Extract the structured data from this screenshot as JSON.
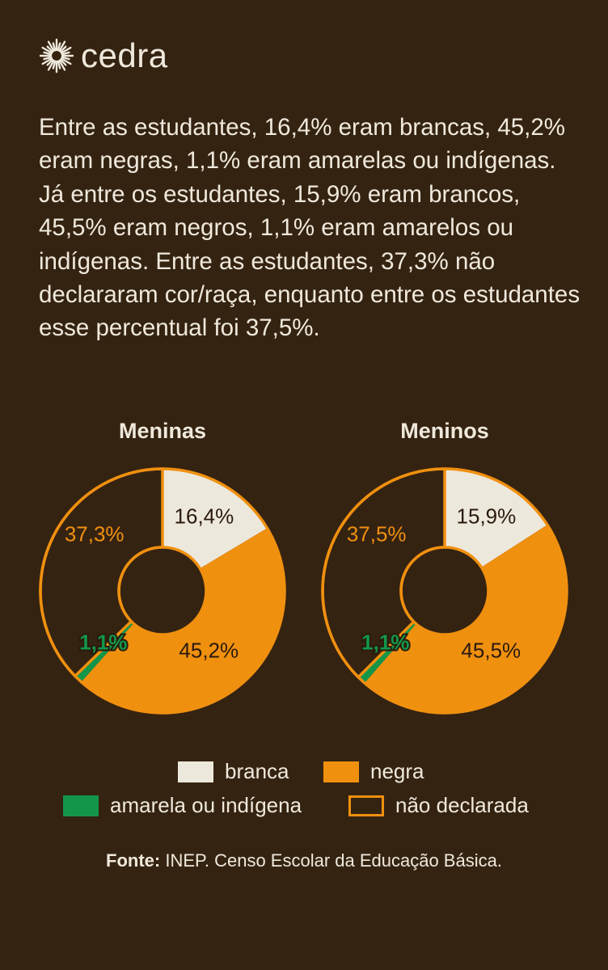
{
  "brand": {
    "name": "cedra",
    "logo_icon": "sunburst-icon"
  },
  "intro_text": "Entre as estudantes, 16,4% eram brancas, 45,2% eram negras, 1,1% eram amarelas ou indígenas. Já entre os estudantes, 15,9% eram brancos, 45,5% eram negros, 1,1% eram amarelos ou indígenas. Entre as estudantes, 37,3% não declararam cor/raça, enquanto entre os estudantes esse percentual foi 37,5%.",
  "colors": {
    "background": "#352312",
    "branca": "#ede8dc",
    "negra": "#f0900f",
    "amarela": "#139649",
    "outline": "#f0900f",
    "text_light": "#efe9dc",
    "text_dark": "#2a1a0c"
  },
  "chart_data": [
    {
      "type": "pie",
      "title": "Meninas",
      "slices": [
        {
          "key": "branca",
          "value": 16.4,
          "label": "16,4%"
        },
        {
          "key": "negra",
          "value": 45.2,
          "label": "45,2%"
        },
        {
          "key": "amarela",
          "value": 1.1,
          "label": "1,1%"
        },
        {
          "key": "nao_declarada",
          "value": 37.3,
          "label": "37,3%"
        }
      ]
    },
    {
      "type": "pie",
      "title": "Meninos",
      "slices": [
        {
          "key": "branca",
          "value": 15.9,
          "label": "15,9%"
        },
        {
          "key": "negra",
          "value": 45.5,
          "label": "45,5%"
        },
        {
          "key": "amarela",
          "value": 1.1,
          "label": "1,1%"
        },
        {
          "key": "nao_declarada",
          "value": 37.5,
          "label": "37,5%"
        }
      ]
    }
  ],
  "legend": [
    {
      "key": "branca",
      "label": "branca"
    },
    {
      "key": "negra",
      "label": "negra"
    },
    {
      "key": "amarela",
      "label": "amarela ou indígena"
    },
    {
      "key": "nao_declarada",
      "label": "não declarada"
    }
  ],
  "source": {
    "label": "Fonte:",
    "text": " INEP. Censo Escolar da Educação Básica."
  }
}
